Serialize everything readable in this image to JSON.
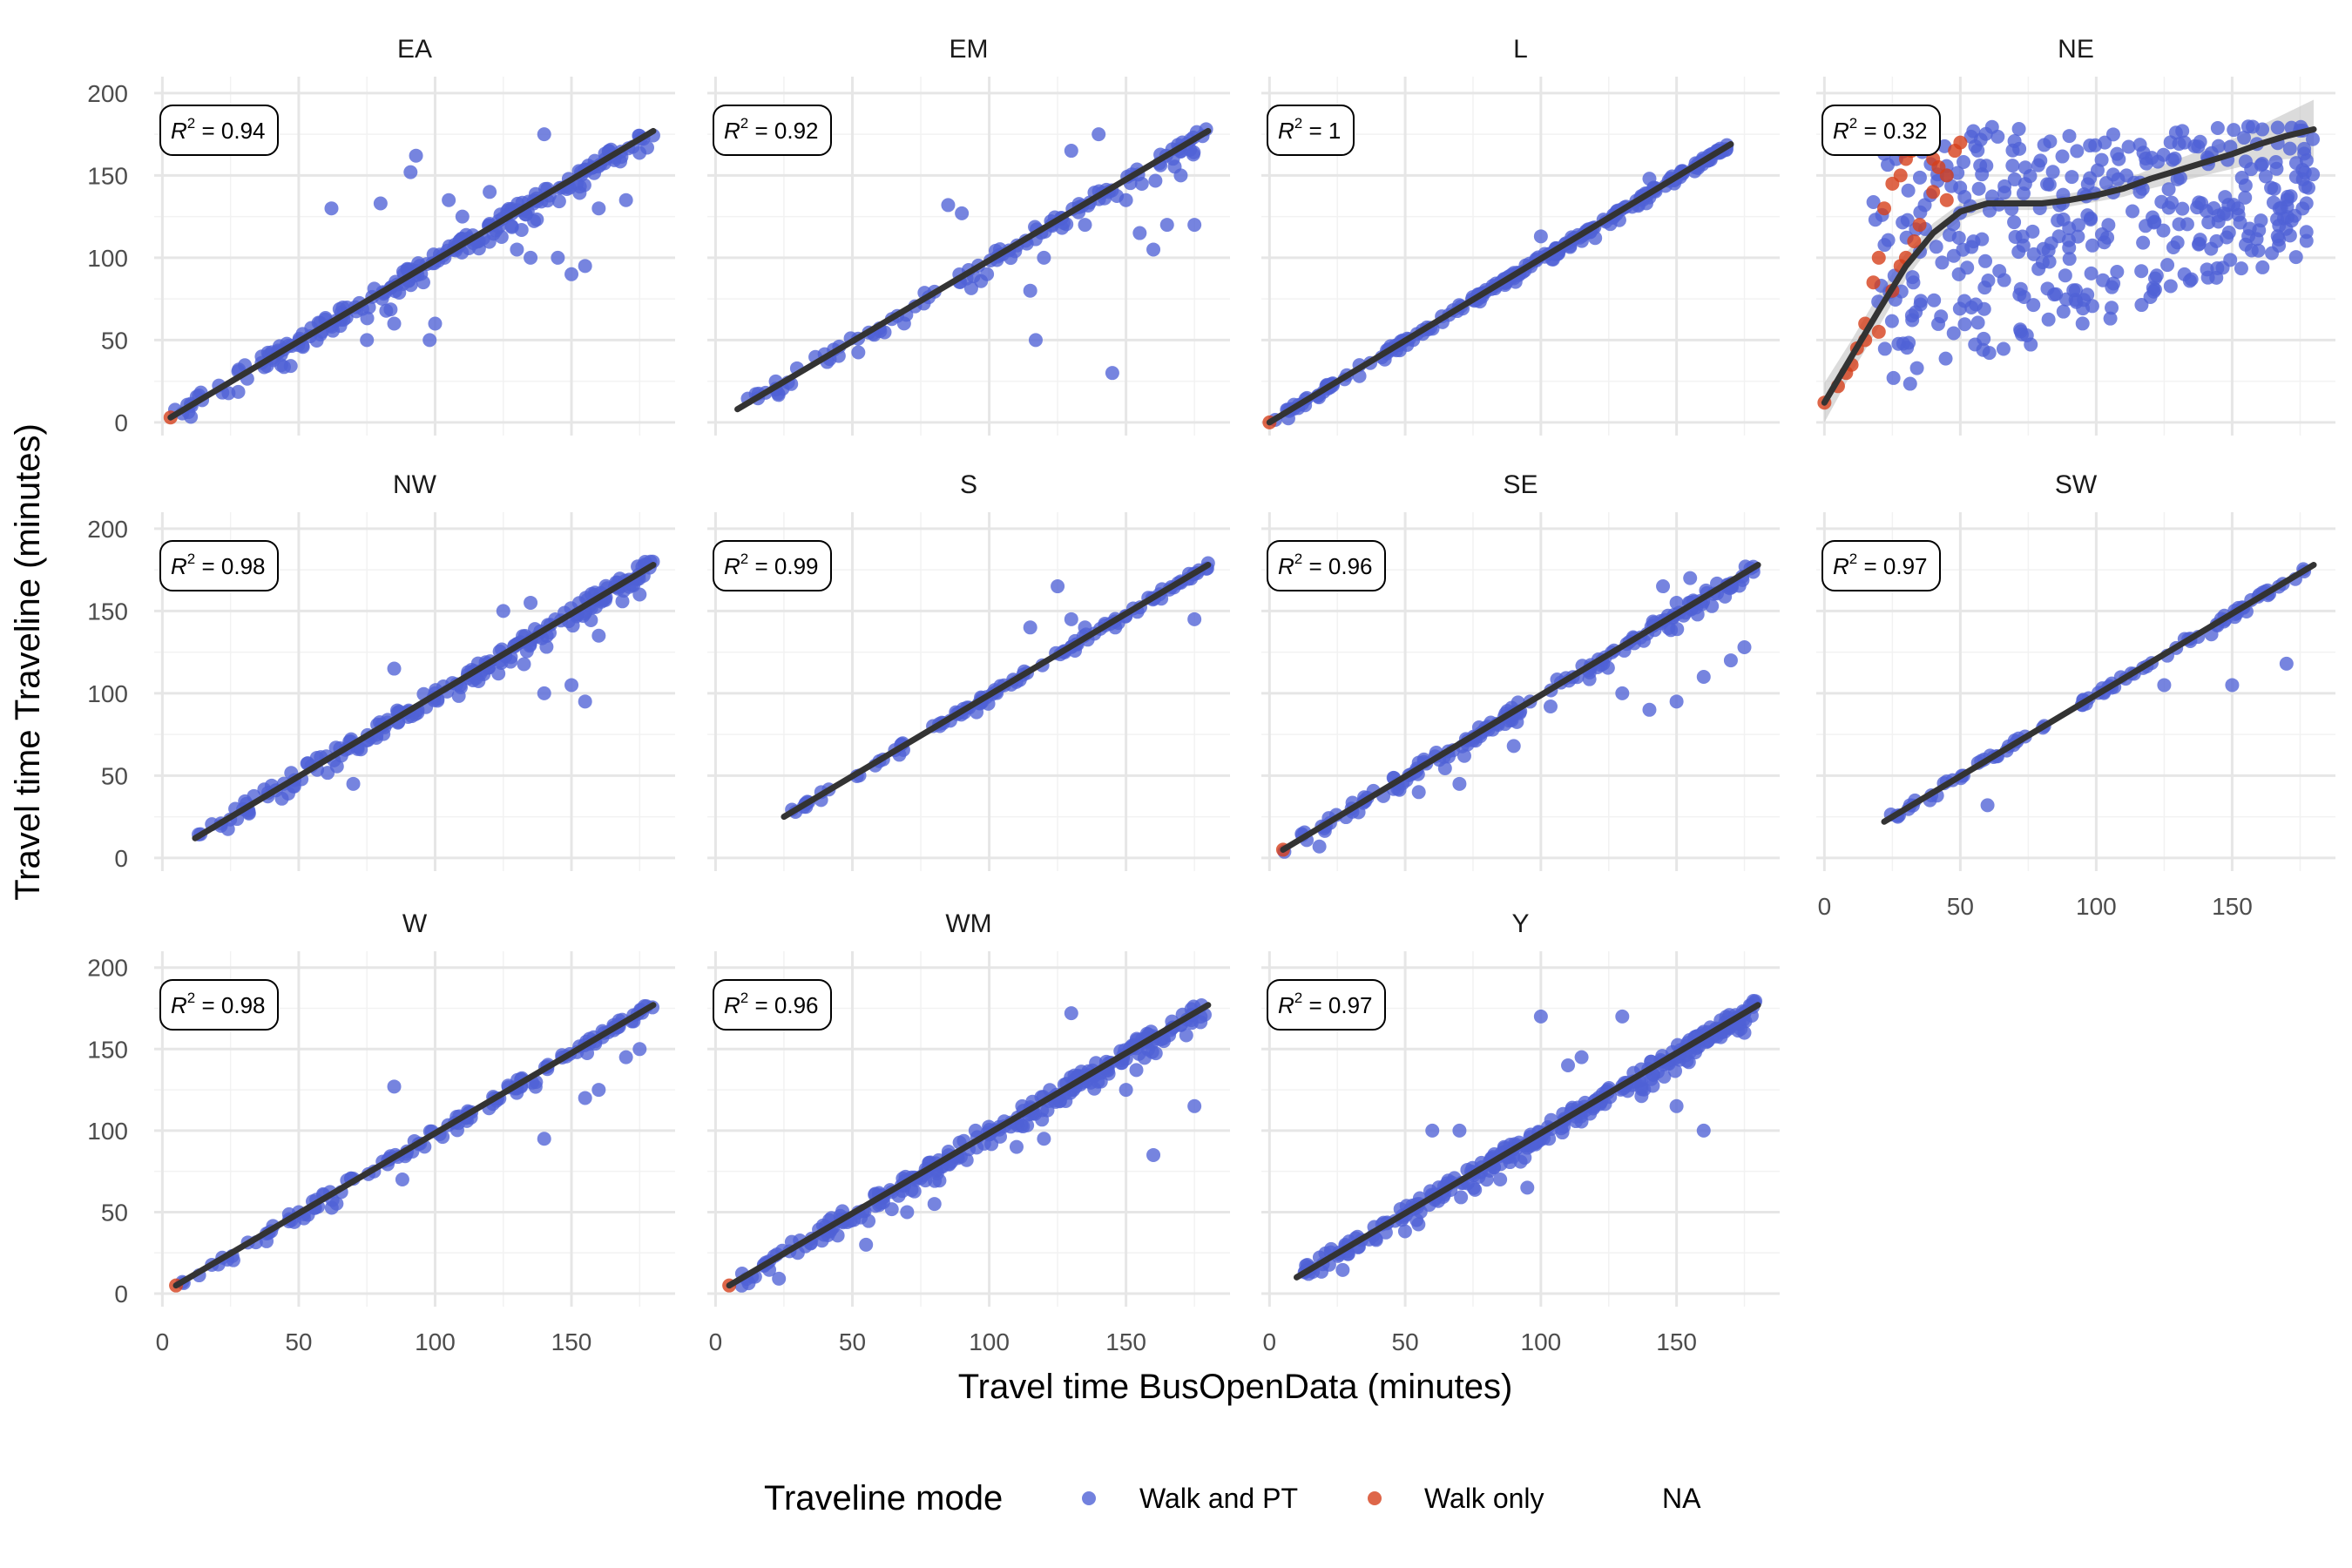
{
  "chart_data": {
    "type": "scatter",
    "xlabel": "Travel time BusOpenData (minutes)",
    "ylabel": "Travel time Traveline (minutes)",
    "xlim": [
      -3,
      188
    ],
    "ylim": [
      -8,
      210
    ],
    "x_ticks": [
      0,
      50,
      100,
      150
    ],
    "y_ticks": [
      0,
      50,
      100,
      150,
      200
    ],
    "grid": true,
    "legend": {
      "title": "Traveline mode",
      "position": "bottom",
      "entries": [
        {
          "label": "Walk and PT",
          "color": "#4f61d6"
        },
        {
          "label": "Walk only",
          "color": "#d6401c"
        },
        {
          "label": "NA",
          "color": ""
        }
      ]
    },
    "facets": [
      {
        "name": "EA",
        "r2": "0.94",
        "fit": [
          [
            3,
            3
          ],
          [
            180,
            177
          ]
        ],
        "n": 220,
        "noise": 5,
        "outliers": [
          [
            62,
            130
          ],
          [
            80,
            133
          ],
          [
            93,
            162
          ],
          [
            91,
            152
          ],
          [
            105,
            135
          ],
          [
            100,
            60
          ],
          [
            98,
            50
          ],
          [
            120,
            140
          ],
          [
            140,
            175
          ],
          [
            150,
            90
          ],
          [
            155,
            95
          ],
          [
            160,
            130
          ],
          [
            170,
            135
          ],
          [
            130,
            105
          ],
          [
            135,
            100
          ],
          [
            85,
            60
          ],
          [
            75,
            50
          ],
          [
            110,
            125
          ],
          [
            115,
            110
          ],
          [
            145,
            100
          ]
        ],
        "walk_only": [
          [
            3,
            3
          ]
        ]
      },
      {
        "name": "EM",
        "r2": "0.92",
        "fit": [
          [
            8,
            8
          ],
          [
            180,
            177
          ]
        ],
        "n": 120,
        "noise": 4,
        "outliers": [
          [
            85,
            132
          ],
          [
            90,
            127
          ],
          [
            115,
            80
          ],
          [
            117,
            50
          ],
          [
            130,
            165
          ],
          [
            140,
            175
          ],
          [
            145,
            30
          ],
          [
            150,
            135
          ],
          [
            155,
            115
          ],
          [
            160,
            105
          ],
          [
            165,
            120
          ],
          [
            170,
            150
          ],
          [
            175,
            120
          ],
          [
            135,
            120
          ],
          [
            120,
            100
          ]
        ],
        "walk_only": []
      },
      {
        "name": "L",
        "r2": "1",
        "fit": [
          [
            0,
            0
          ],
          [
            170,
            169
          ]
        ],
        "n": 240,
        "noise": 2,
        "outliers": [
          [
            100,
            113
          ],
          [
            120,
            112
          ],
          [
            140,
            148
          ]
        ],
        "walk_only": [
          [
            0,
            0
          ]
        ]
      },
      {
        "name": "NE",
        "r2": "0.32",
        "fit": [],
        "smooth": [
          [
            0,
            12
          ],
          [
            10,
            40
          ],
          [
            20,
            68
          ],
          [
            30,
            95
          ],
          [
            40,
            115
          ],
          [
            50,
            128
          ],
          [
            60,
            133
          ],
          [
            70,
            133
          ],
          [
            80,
            133
          ],
          [
            90,
            135
          ],
          [
            100,
            138
          ],
          [
            110,
            142
          ],
          [
            120,
            148
          ],
          [
            130,
            153
          ],
          [
            140,
            158
          ],
          [
            150,
            163
          ],
          [
            160,
            169
          ],
          [
            170,
            174
          ],
          [
            180,
            178
          ]
        ],
        "band": [
          [
            0,
            0,
            24
          ],
          [
            10,
            30,
            50
          ],
          [
            20,
            58,
            78
          ],
          [
            30,
            87,
            103
          ],
          [
            40,
            109,
            121
          ],
          [
            50,
            123,
            133
          ],
          [
            60,
            129,
            137
          ],
          [
            70,
            129,
            137
          ],
          [
            80,
            129,
            137
          ],
          [
            90,
            131,
            139
          ],
          [
            100,
            134,
            142
          ],
          [
            110,
            137,
            147
          ],
          [
            120,
            142,
            154
          ],
          [
            130,
            146,
            160
          ],
          [
            140,
            150,
            166
          ],
          [
            150,
            154,
            172
          ],
          [
            160,
            158,
            180
          ],
          [
            170,
            160,
            188
          ],
          [
            180,
            160,
            196
          ]
        ],
        "n": 380,
        "noise": 0,
        "walk_only": [
          [
            0,
            12
          ],
          [
            5,
            22
          ],
          [
            8,
            30
          ],
          [
            10,
            35
          ],
          [
            15,
            60
          ],
          [
            18,
            85
          ],
          [
            20,
            100
          ],
          [
            22,
            130
          ],
          [
            25,
            145
          ],
          [
            28,
            150
          ],
          [
            30,
            160
          ],
          [
            32,
            165
          ],
          [
            35,
            170
          ],
          [
            38,
            168
          ],
          [
            40,
            160
          ],
          [
            42,
            155
          ],
          [
            45,
            150
          ],
          [
            48,
            165
          ],
          [
            50,
            170
          ],
          [
            20,
            55
          ],
          [
            25,
            80
          ],
          [
            30,
            100
          ],
          [
            35,
            120
          ],
          [
            40,
            140
          ],
          [
            45,
            135
          ],
          [
            15,
            50
          ],
          [
            12,
            45
          ],
          [
            28,
            95
          ],
          [
            33,
            110
          ]
        ]
      },
      {
        "name": "NW",
        "r2": "0.98",
        "fit": [
          [
            12,
            12
          ],
          [
            180,
            178
          ]
        ],
        "n": 200,
        "noise": 5,
        "outliers": [
          [
            70,
            45
          ],
          [
            85,
            115
          ],
          [
            100,
            100
          ],
          [
            140,
            100
          ],
          [
            150,
            105
          ],
          [
            155,
            95
          ],
          [
            160,
            135
          ],
          [
            175,
            160
          ],
          [
            135,
            155
          ],
          [
            125,
            150
          ]
        ],
        "walk_only": []
      },
      {
        "name": "S",
        "r2": "0.99",
        "fit": [
          [
            25,
            25
          ],
          [
            180,
            178
          ]
        ],
        "n": 110,
        "noise": 2,
        "outliers": [
          [
            125,
            165
          ],
          [
            130,
            145
          ],
          [
            135,
            140
          ],
          [
            115,
            140
          ],
          [
            175,
            145
          ]
        ],
        "walk_only": []
      },
      {
        "name": "SE",
        "r2": "0.96",
        "fit": [
          [
            5,
            5
          ],
          [
            180,
            178
          ]
        ],
        "n": 170,
        "noise": 4,
        "outliers": [
          [
            55,
            40
          ],
          [
            70,
            45
          ],
          [
            90,
            68
          ],
          [
            130,
            100
          ],
          [
            140,
            90
          ],
          [
            150,
            95
          ],
          [
            160,
            110
          ],
          [
            170,
            120
          ],
          [
            175,
            128
          ],
          [
            150,
            155
          ],
          [
            155,
            170
          ],
          [
            145,
            165
          ]
        ],
        "walk_only": [
          [
            5,
            5
          ]
        ]
      },
      {
        "name": "SW",
        "r2": "0.97",
        "fit": [
          [
            22,
            22
          ],
          [
            180,
            178
          ]
        ],
        "n": 90,
        "noise": 2,
        "outliers": [
          [
            60,
            32
          ],
          [
            125,
            105
          ],
          [
            150,
            105
          ],
          [
            170,
            118
          ]
        ],
        "walk_only": []
      },
      {
        "name": "W",
        "r2": "0.98",
        "fit": [
          [
            5,
            5
          ],
          [
            180,
            177
          ]
        ],
        "n": 140,
        "noise": 3,
        "outliers": [
          [
            85,
            127
          ],
          [
            88,
            70
          ],
          [
            140,
            95
          ],
          [
            155,
            120
          ],
          [
            160,
            125
          ],
          [
            170,
            145
          ],
          [
            175,
            150
          ]
        ],
        "walk_only": [
          [
            5,
            5
          ]
        ]
      },
      {
        "name": "WM",
        "r2": "0.96",
        "fit": [
          [
            5,
            5
          ],
          [
            180,
            177
          ]
        ],
        "n": 260,
        "noise": 5,
        "outliers": [
          [
            55,
            30
          ],
          [
            95,
            100
          ],
          [
            130,
            172
          ],
          [
            150,
            125
          ],
          [
            160,
            85
          ],
          [
            175,
            115
          ],
          [
            120,
            95
          ],
          [
            110,
            90
          ],
          [
            70,
            50
          ],
          [
            80,
            55
          ]
        ],
        "walk_only": [
          [
            5,
            5
          ]
        ]
      },
      {
        "name": "Y",
        "r2": "0.97",
        "fit": [
          [
            10,
            10
          ],
          [
            180,
            177
          ]
        ],
        "n": 300,
        "noise": 5,
        "outliers": [
          [
            60,
            100
          ],
          [
            70,
            100
          ],
          [
            100,
            170
          ],
          [
            110,
            140
          ],
          [
            115,
            145
          ],
          [
            130,
            170
          ],
          [
            150,
            115
          ],
          [
            160,
            100
          ],
          [
            175,
            160
          ],
          [
            95,
            65
          ],
          [
            85,
            70
          ]
        ],
        "walk_only": []
      }
    ]
  }
}
